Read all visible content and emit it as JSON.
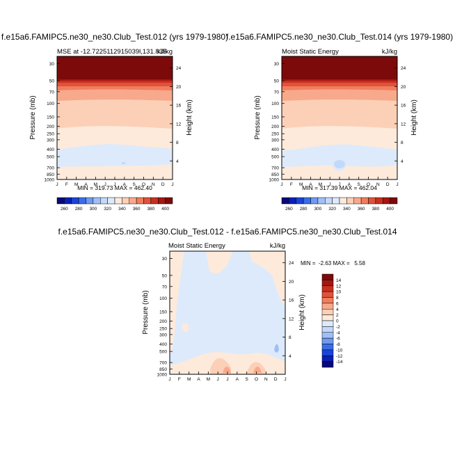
{
  "chart_data": [
    {
      "type": "contour",
      "title": "f.e15a6.FAMIPC5.ne30_ne30.Club_Test.012 (yrs 1979-1980)",
      "subtitle_left": "MSE at -12.7225112915039l,131.835",
      "subtitle_right": "kJ/kg",
      "ylabel": "Pressure (mb)",
      "ylabel_right": "Height (km)",
      "x_ticks": [
        "J",
        "F",
        "M",
        "A",
        "M",
        "J",
        "J",
        "A",
        "S",
        "O",
        "N",
        "D",
        "J"
      ],
      "p_ticks": [
        "30",
        "50",
        "70",
        "100",
        "150",
        "200",
        "250",
        "300",
        "400",
        "500",
        "700",
        "850",
        "1000"
      ],
      "h_ticks": [
        "24",
        "20",
        "16",
        "12",
        "8",
        "4"
      ],
      "stats": "MIN = 319.73 MAX = 462.40",
      "contour_levels": [
        260,
        270,
        280,
        290,
        300,
        310,
        320,
        330,
        340,
        350,
        360,
        370,
        380,
        390,
        400
      ],
      "colorbar_labels": [
        "260",
        "280",
        "300",
        "320",
        "340",
        "360",
        "380",
        "400"
      ]
    },
    {
      "type": "contour",
      "title": "f.e15a6.FAMIPC5.ne30_ne30.Club_Test.014 (yrs 1979-1980)",
      "subtitle_left": "Moist Static Energy",
      "subtitle_right": "kJ/kg",
      "ylabel": "Pressure (mb)",
      "ylabel_right": "Height (km)",
      "x_ticks": [
        "J",
        "F",
        "M",
        "A",
        "M",
        "J",
        "J",
        "A",
        "S",
        "O",
        "N",
        "D",
        "J"
      ],
      "p_ticks": [
        "30",
        "50",
        "70",
        "100",
        "150",
        "200",
        "250",
        "300",
        "400",
        "500",
        "700",
        "850",
        "1000"
      ],
      "h_ticks": [
        "24",
        "20",
        "16",
        "12",
        "8",
        "4"
      ],
      "stats": "MIN = 317.39 MAX = 462.04",
      "contour_levels": [
        260,
        270,
        280,
        290,
        300,
        310,
        320,
        330,
        340,
        350,
        360,
        370,
        380,
        390,
        400
      ],
      "colorbar_labels": [
        "260",
        "280",
        "300",
        "320",
        "340",
        "360",
        "380",
        "400"
      ]
    },
    {
      "type": "contour",
      "title": "f.e15a6.FAMIPC5.ne30_ne30.Club_Test.012 - f.e15a6.FAMIPC5.ne30_ne30.Club_Test.014",
      "subtitle_left": "Moist Static Energy",
      "subtitle_right": "kJ/kg",
      "ylabel": "Pressure (mb)",
      "ylabel_right": "Height (km)",
      "x_ticks": [
        "J",
        "F",
        "M",
        "A",
        "M",
        "J",
        "J",
        "A",
        "S",
        "O",
        "N",
        "D",
        "J"
      ],
      "p_ticks": [
        "30",
        "50",
        "70",
        "100",
        "150",
        "200",
        "250",
        "300",
        "400",
        "500",
        "700",
        "850",
        "1000"
      ],
      "h_ticks": [
        "24",
        "20",
        "16",
        "12",
        "8",
        "4"
      ],
      "stats": "MIN =  -2.63 MAX =   5.58",
      "contour_levels": [
        -14,
        -12,
        -10,
        -8,
        -6,
        -4,
        -2,
        0,
        2,
        4,
        6,
        8,
        10,
        12,
        14
      ],
      "colorbar_labels": [
        "14",
        "12",
        "10",
        "8",
        "6",
        "4",
        "2",
        "0",
        "-2",
        "-4",
        "-6",
        "-8",
        "-10",
        "-12",
        "-14"
      ]
    }
  ],
  "colors": {
    "cb16": [
      "#08087a",
      "#0a1fb4",
      "#1a44d9",
      "#3a6ee8",
      "#6f9af0",
      "#9fbff5",
      "#c4d9f9",
      "#dceafb",
      "#fdeadb",
      "#fcd0b7",
      "#f8a98b",
      "#f07e5e",
      "#e0523b",
      "#c7301f",
      "#a21712",
      "#7c0a0a"
    ]
  }
}
